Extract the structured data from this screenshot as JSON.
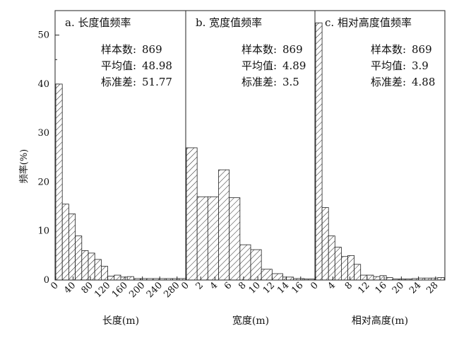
{
  "chart_data": {
    "type": "bar",
    "ylabel": "频率(%)",
    "ylim": [
      0,
      55
    ],
    "yticks": [
      0,
      10,
      20,
      30,
      40,
      50
    ],
    "panels": [
      {
        "title": "a. 长度值频率",
        "xlabel": "长度(m)",
        "xlim": [
          0,
          300
        ],
        "xticks": [
          "0",
          "40",
          "80",
          "120",
          "160",
          "200",
          "240",
          "280"
        ],
        "xtick_values": [
          0,
          40,
          80,
          120,
          160,
          200,
          240,
          280
        ],
        "bin_width": 15,
        "values": [
          40.0,
          15.5,
          13.5,
          9.0,
          6.0,
          5.5,
          4.2,
          2.8,
          0.8,
          1.0,
          0.6,
          0.7,
          0.3,
          0.3,
          0.3,
          0.3,
          0.3,
          0.3,
          0.3,
          0.3
        ],
        "stats": [
          {
            "label": "样本数:",
            "value": "869"
          },
          {
            "label": "平均值:",
            "value": "48.98"
          },
          {
            "label": "标准差:",
            "value": "51.77"
          }
        ]
      },
      {
        "title": "b. 宽度值频率",
        "xlabel": "宽度(m)",
        "xlim": [
          0,
          18
        ],
        "xticks": [
          "0",
          "2",
          "4",
          "6",
          "8",
          "10",
          "12",
          "14",
          "16"
        ],
        "xtick_values": [
          0,
          2,
          4,
          6,
          8,
          10,
          12,
          14,
          16
        ],
        "bin_width": 1.5,
        "values": [
          27.0,
          17.0,
          17.0,
          22.5,
          16.8,
          7.2,
          6.2,
          2.2,
          1.3,
          0.6,
          0.3,
          0.2
        ],
        "stats": [
          {
            "label": "样本数:",
            "value": "869"
          },
          {
            "label": "平均值:",
            "value": "4.89"
          },
          {
            "label": "标准差:",
            "value": "3.5"
          }
        ]
      },
      {
        "title": "c. 相对高度值频率",
        "xlabel": "相对高度(m)",
        "xlim": [
          0,
          30
        ],
        "xticks": [
          "0",
          "4",
          "8",
          "12",
          "16",
          "20",
          "24",
          "28"
        ],
        "xtick_values": [
          0,
          4,
          8,
          12,
          16,
          20,
          24,
          28
        ],
        "bin_width": 1.5,
        "values": [
          52.5,
          14.8,
          9.0,
          6.7,
          4.8,
          5.0,
          3.2,
          1.0,
          1.0,
          0.7,
          0.9,
          0.5,
          0.2,
          0.2,
          0.2,
          0.3,
          0.4,
          0.4,
          0.4,
          0.5
        ],
        "stats": [
          {
            "label": "样本数:",
            "value": "869"
          },
          {
            "label": "平均值:",
            "value": "3.9"
          },
          {
            "label": "标准差:",
            "value": "4.88"
          }
        ]
      }
    ]
  }
}
